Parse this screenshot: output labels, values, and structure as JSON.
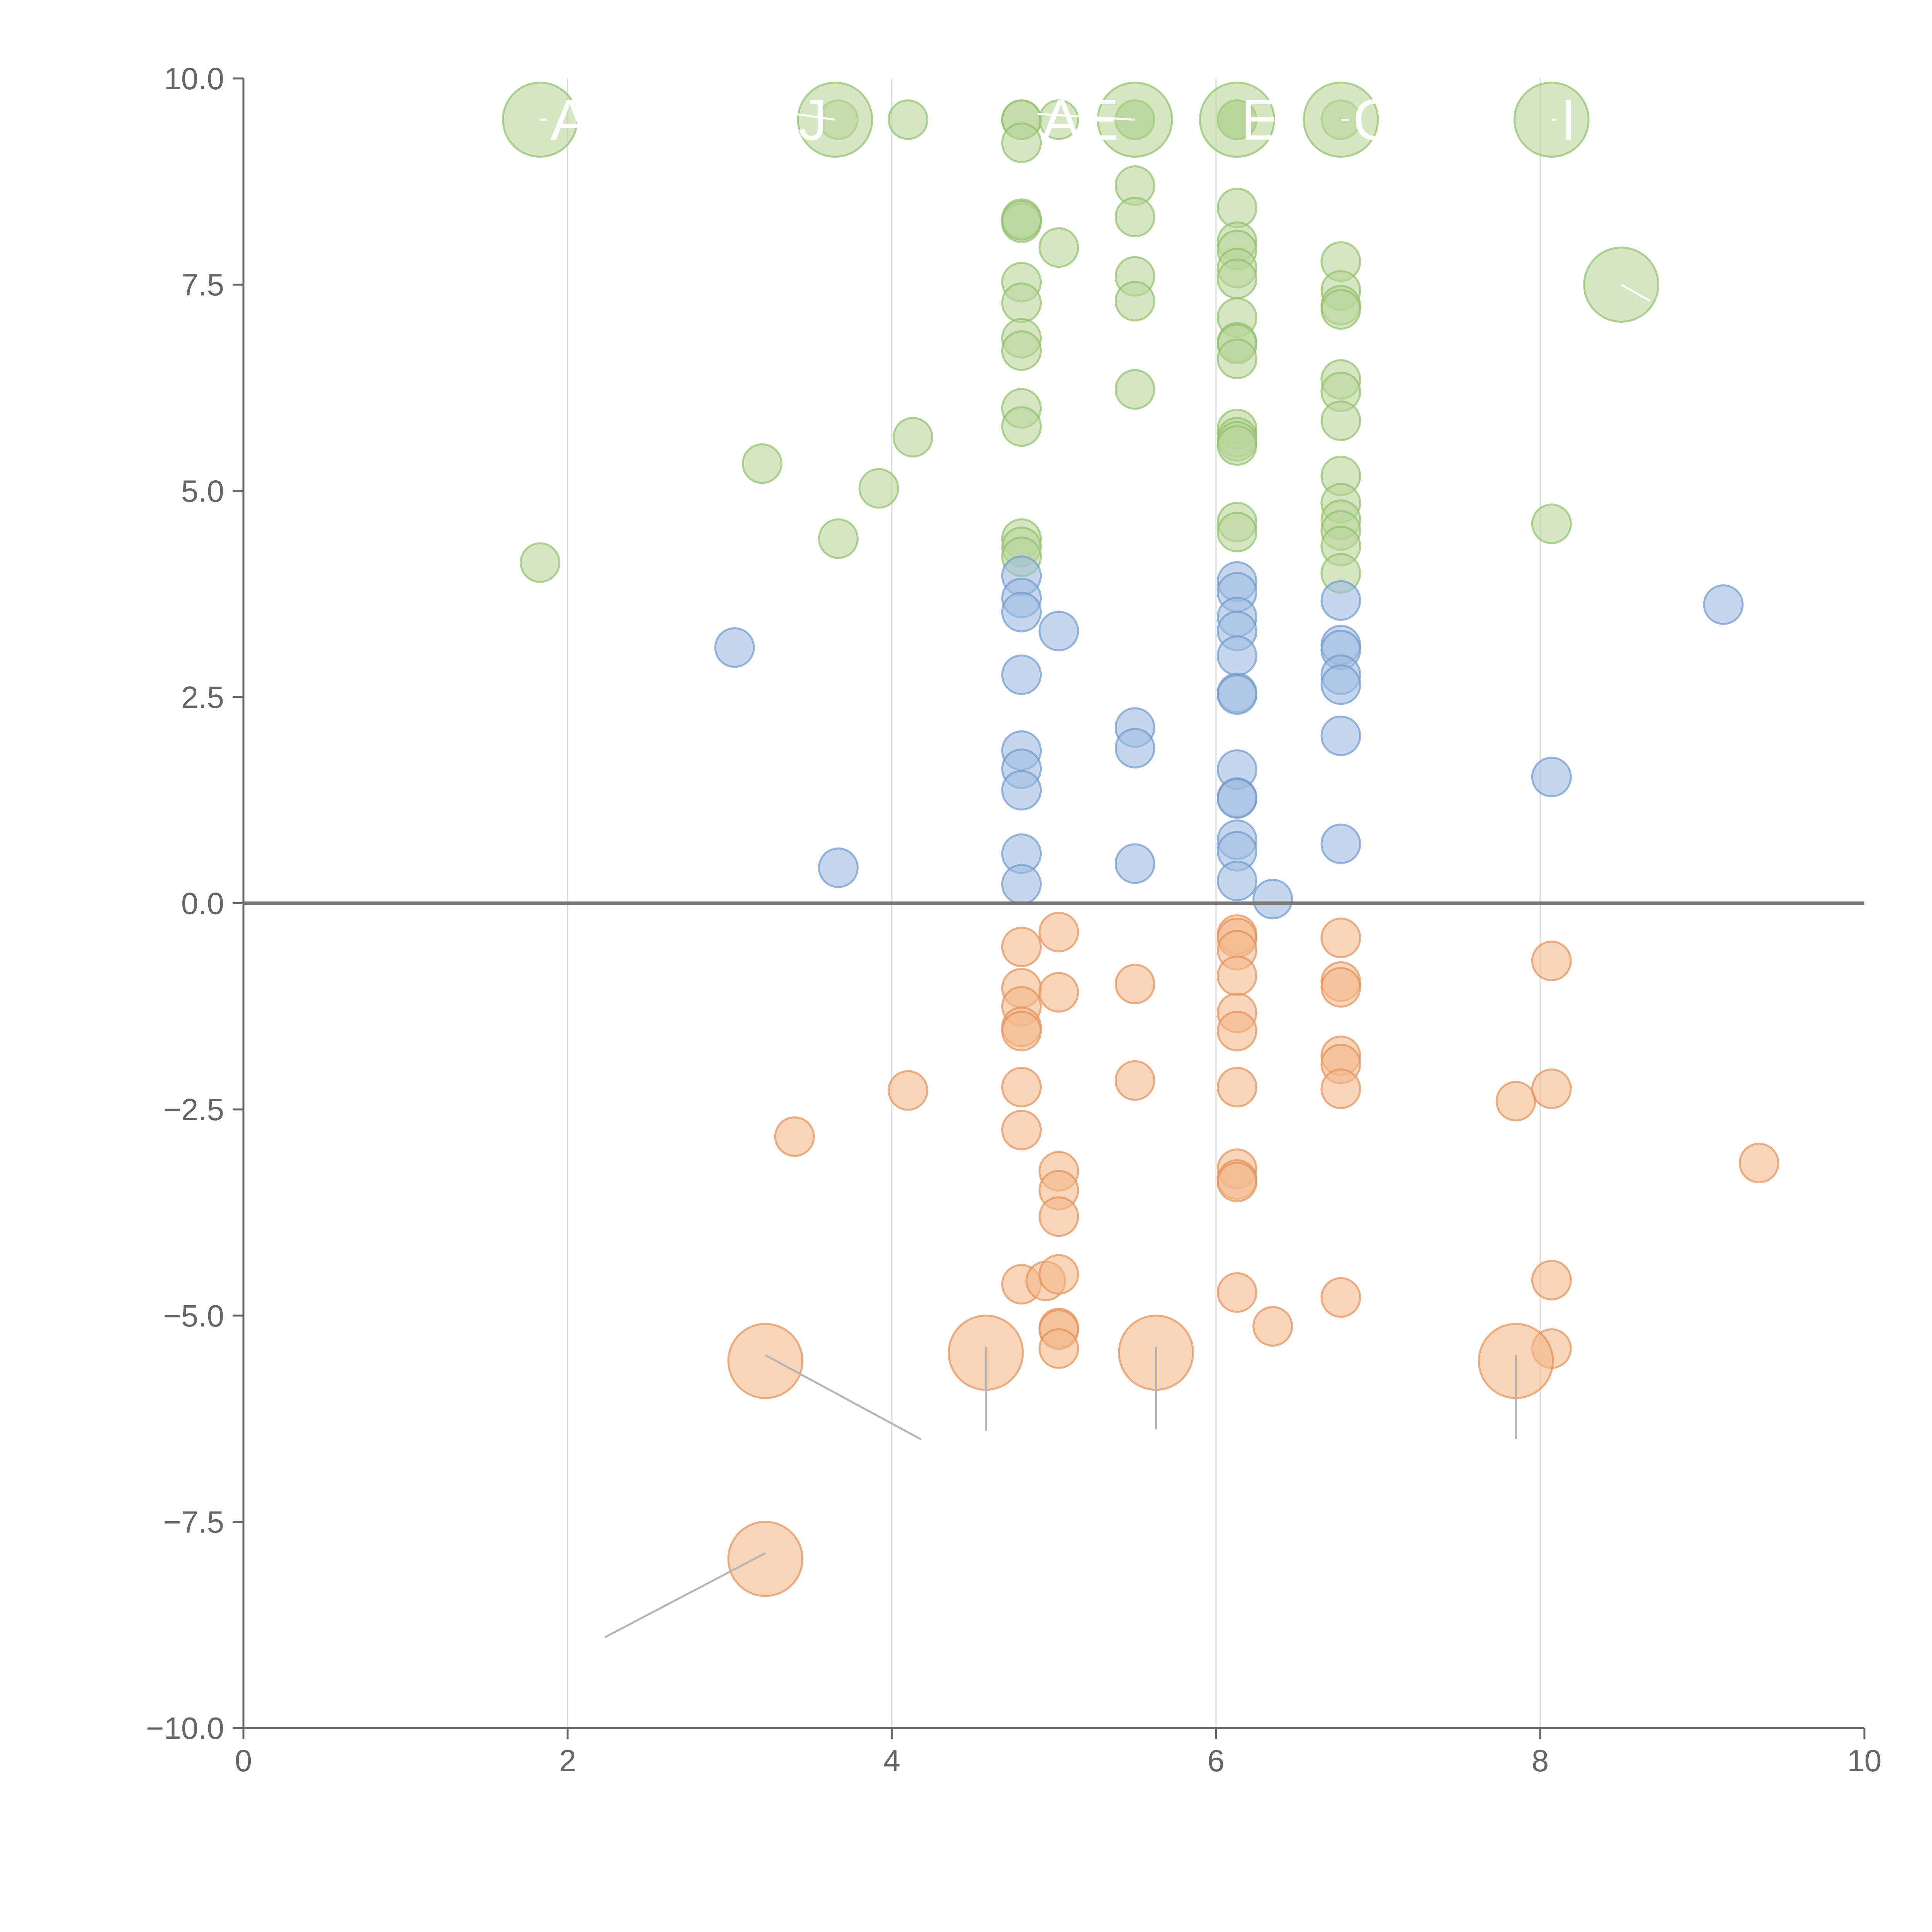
{
  "chart_data": {
    "type": "scatter",
    "title": "",
    "xlabel": "",
    "ylabel": "",
    "xlim": [
      0,
      10
    ],
    "ylim": [
      -10,
      10
    ],
    "x_ticks": [
      0,
      2,
      4,
      6,
      8,
      10
    ],
    "x_tick_labels": [
      "0",
      "2",
      "4",
      "6",
      "8",
      "10"
    ],
    "y_ticks": [
      10,
      7.5,
      5,
      2.5,
      0,
      -2.5,
      -5,
      -7.5,
      -10
    ],
    "y_tick_labels": [
      "10.0",
      "7.5",
      "5.0",
      "2.5",
      "0.0",
      "−2.5",
      "−5.0",
      "−7.5",
      "−10.0"
    ],
    "vertical_gridlines_at_x": [
      2,
      4,
      6,
      8
    ],
    "reference_line_y": 0,
    "legend": "none",
    "colors": {
      "green_fill": "#b9d59a",
      "green_stroke": "#92bf6a",
      "blue_fill": "#9fbce0",
      "blue_stroke": "#6f98cf",
      "orange_fill": "#f3b98a",
      "orange_stroke": "#e29058"
    },
    "series": [
      {
        "name": "green",
        "color": "#92bf6a",
        "points": [
          [
            4.8,
            9.5
          ],
          [
            4.8,
            9.5
          ],
          [
            5.03,
            9.5
          ],
          [
            5.5,
            9.5
          ],
          [
            5.5,
            9.5
          ],
          [
            6.13,
            9.5
          ],
          [
            6.13,
            9.5
          ],
          [
            6.13,
            9.5
          ],
          [
            6.77,
            9.5
          ],
          [
            3.67,
            9.5
          ],
          [
            4.1,
            9.5
          ],
          [
            4.8,
            9.22
          ],
          [
            4.8,
            8.3
          ],
          [
            4.8,
            8.25
          ],
          [
            4.8,
            8.28
          ],
          [
            4.8,
            7.53
          ],
          [
            4.8,
            7.28
          ],
          [
            4.8,
            6.85
          ],
          [
            4.8,
            6.7
          ],
          [
            4.8,
            6.0
          ],
          [
            4.8,
            5.78
          ],
          [
            4.8,
            4.42
          ],
          [
            4.8,
            4.32
          ],
          [
            4.8,
            4.2
          ],
          [
            5.03,
            7.95
          ],
          [
            5.5,
            8.7
          ],
          [
            5.5,
            8.32
          ],
          [
            5.5,
            7.6
          ],
          [
            5.5,
            7.3
          ],
          [
            5.5,
            6.23
          ],
          [
            6.13,
            8.43
          ],
          [
            6.13,
            8.02
          ],
          [
            6.13,
            7.92
          ],
          [
            6.13,
            7.7
          ],
          [
            6.13,
            7.57
          ],
          [
            6.13,
            7.1
          ],
          [
            6.13,
            6.8
          ],
          [
            6.13,
            6.78
          ],
          [
            6.13,
            6.6
          ],
          [
            6.13,
            5.75
          ],
          [
            6.13,
            5.65
          ],
          [
            6.13,
            5.6
          ],
          [
            6.13,
            5.55
          ],
          [
            6.13,
            4.62
          ],
          [
            6.13,
            4.5
          ],
          [
            6.77,
            7.78
          ],
          [
            6.77,
            7.43
          ],
          [
            6.77,
            7.25
          ],
          [
            6.77,
            7.2
          ],
          [
            6.77,
            6.35
          ],
          [
            6.77,
            6.2
          ],
          [
            6.77,
            5.85
          ],
          [
            6.77,
            5.18
          ],
          [
            6.77,
            4.85
          ],
          [
            6.77,
            4.65
          ],
          [
            6.77,
            4.52
          ],
          [
            6.77,
            4.33
          ],
          [
            6.77,
            4.0
          ],
          [
            1.83,
            4.13
          ],
          [
            3.2,
            5.33
          ],
          [
            3.67,
            4.42
          ],
          [
            3.92,
            5.03
          ],
          [
            4.13,
            5.65
          ],
          [
            8.07,
            4.6
          ]
        ]
      },
      {
        "name": "blue",
        "color": "#6f98cf",
        "points": [
          [
            3.03,
            3.1
          ],
          [
            3.67,
            0.43
          ],
          [
            4.8,
            3.97
          ],
          [
            4.8,
            3.7
          ],
          [
            4.8,
            3.53
          ],
          [
            4.8,
            2.77
          ],
          [
            4.8,
            1.85
          ],
          [
            4.8,
            1.63
          ],
          [
            4.8,
            1.37
          ],
          [
            4.8,
            0.6
          ],
          [
            4.8,
            0.23
          ],
          [
            5.03,
            3.3
          ],
          [
            5.5,
            2.13
          ],
          [
            5.5,
            1.88
          ],
          [
            5.5,
            0.48
          ],
          [
            6.13,
            3.9
          ],
          [
            6.13,
            3.77
          ],
          [
            6.13,
            3.47
          ],
          [
            6.13,
            3.3
          ],
          [
            6.13,
            3.0
          ],
          [
            6.13,
            2.55
          ],
          [
            6.13,
            2.53
          ],
          [
            6.13,
            1.62
          ],
          [
            6.13,
            1.28
          ],
          [
            6.13,
            1.27
          ],
          [
            6.13,
            0.77
          ],
          [
            6.13,
            0.63
          ],
          [
            6.13,
            0.27
          ],
          [
            6.35,
            0.05
          ],
          [
            6.77,
            3.67
          ],
          [
            6.77,
            3.13
          ],
          [
            6.77,
            3.07
          ],
          [
            6.77,
            2.77
          ],
          [
            6.77,
            2.65
          ],
          [
            6.77,
            2.03
          ],
          [
            6.77,
            0.72
          ],
          [
            8.07,
            1.53
          ],
          [
            9.13,
            3.62
          ]
        ]
      },
      {
        "name": "orange",
        "color": "#e29058",
        "points": [
          [
            3.4,
            -2.83
          ],
          [
            4.1,
            -2.27
          ],
          [
            4.8,
            -0.53
          ],
          [
            4.8,
            -1.03
          ],
          [
            4.8,
            -1.25
          ],
          [
            4.8,
            -1.5
          ],
          [
            4.8,
            -1.55
          ],
          [
            4.8,
            -2.23
          ],
          [
            4.8,
            -2.75
          ],
          [
            4.8,
            -4.62
          ],
          [
            4.95,
            -4.58
          ],
          [
            5.03,
            -0.35
          ],
          [
            5.03,
            -1.08
          ],
          [
            5.03,
            -3.25
          ],
          [
            5.03,
            -3.48
          ],
          [
            5.03,
            -3.8
          ],
          [
            5.03,
            -4.5
          ],
          [
            5.03,
            -5.15
          ],
          [
            5.03,
            -5.17
          ],
          [
            5.03,
            -5.4
          ],
          [
            5.5,
            -0.98
          ],
          [
            5.5,
            -2.15
          ],
          [
            6.13,
            -0.38
          ],
          [
            6.13,
            -0.42
          ],
          [
            6.13,
            -0.57
          ],
          [
            6.13,
            -0.88
          ],
          [
            6.13,
            -1.33
          ],
          [
            6.13,
            -1.55
          ],
          [
            6.13,
            -2.23
          ],
          [
            6.13,
            -3.22
          ],
          [
            6.13,
            -3.35
          ],
          [
            6.13,
            -3.38
          ],
          [
            6.13,
            -4.72
          ],
          [
            6.35,
            -5.13
          ],
          [
            6.77,
            -0.42
          ],
          [
            6.77,
            -0.95
          ],
          [
            6.77,
            -1.02
          ],
          [
            6.77,
            -1.85
          ],
          [
            6.77,
            -1.95
          ],
          [
            6.77,
            -2.25
          ],
          [
            6.77,
            -4.78
          ],
          [
            7.85,
            -2.4
          ],
          [
            8.07,
            -0.7
          ],
          [
            8.07,
            -2.25
          ],
          [
            8.07,
            -4.57
          ],
          [
            8.07,
            -5.4
          ],
          [
            9.35,
            -3.15
          ]
        ]
      }
    ],
    "highlights": [
      {
        "x": 1.83,
        "y": 9.5,
        "series": "green",
        "label": "A",
        "leader_to": [
          1.87,
          9.5
        ]
      },
      {
        "x": 3.65,
        "y": 9.5,
        "series": "green",
        "label": "J",
        "leader_to": [
          3.4,
          9.57
        ]
      },
      {
        "x": 5.5,
        "y": 9.5,
        "series": "green",
        "label": "AE",
        "leader_to": [
          4.9,
          9.57
        ]
      },
      {
        "x": 6.13,
        "y": 9.5,
        "series": "green",
        "label": "E",
        "leader_to": [
          6.13,
          9.5
        ]
      },
      {
        "x": 6.77,
        "y": 9.5,
        "series": "green",
        "label": "C",
        "leader_to": [
          6.82,
          9.5
        ]
      },
      {
        "x": 8.07,
        "y": 9.5,
        "series": "green",
        "label": "I",
        "leader_to": [
          8.1,
          9.5
        ]
      },
      {
        "x": 8.5,
        "y": 7.5,
        "series": "green",
        "label": "",
        "leader_to": [
          8.68,
          7.3
        ]
      },
      {
        "x": 3.22,
        "y": -5.55,
        "series": "orange",
        "label": "",
        "leader_to": [
          4.18,
          -6.5
        ]
      },
      {
        "x": 4.58,
        "y": -5.45,
        "series": "orange",
        "label": "",
        "leader_to": [
          4.58,
          -6.4
        ]
      },
      {
        "x": 5.63,
        "y": -5.45,
        "series": "orange",
        "label": "",
        "leader_to": [
          5.63,
          -6.38
        ]
      },
      {
        "x": 7.85,
        "y": -5.55,
        "series": "orange",
        "label": "",
        "leader_to": [
          7.85,
          -6.5
        ]
      },
      {
        "x": 3.22,
        "y": -7.95,
        "series": "orange",
        "label": "",
        "leader_to": [
          2.23,
          -8.9
        ]
      }
    ]
  }
}
